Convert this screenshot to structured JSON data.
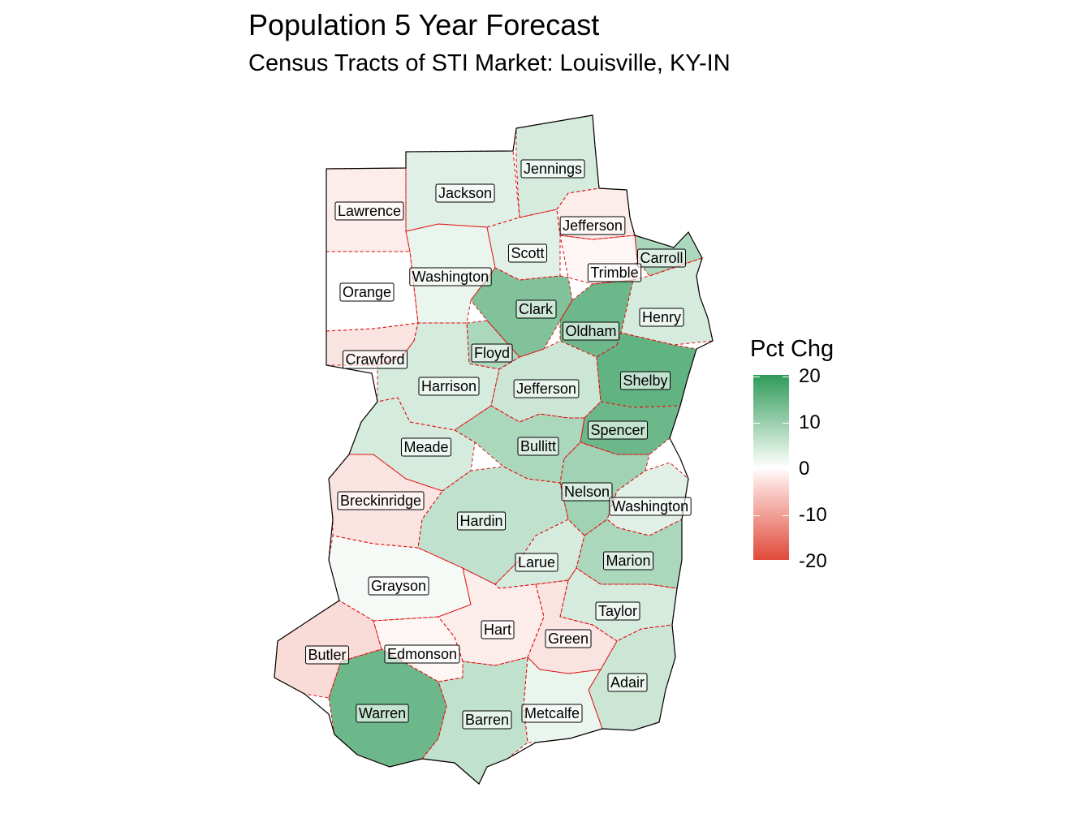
{
  "title": "Population 5 Year Forecast",
  "subtitle": "Census Tracts of STI Market: Louisville, KY-IN",
  "legend": {
    "title": "Pct Chg",
    "ticks": [
      "20",
      "10",
      "0",
      "-10",
      "-20"
    ],
    "scale": {
      "min": -20,
      "max": 20,
      "low_color": "#e04a3a",
      "mid_color": "#ffffff",
      "high_color": "#2e9a58"
    }
  },
  "counties": [
    {
      "name": "Jennings",
      "pct": 4
    },
    {
      "name": "Jackson",
      "pct": 3
    },
    {
      "name": "Lawrence",
      "pct": -2
    },
    {
      "name": "Jefferson",
      "pct": -2
    },
    {
      "name": "Scott",
      "pct": 3
    },
    {
      "name": "Carroll",
      "pct": 8
    },
    {
      "name": "Trimble",
      "pct": -1
    },
    {
      "name": "Washington",
      "pct": 2
    },
    {
      "name": "Orange",
      "pct": 0
    },
    {
      "name": "Henry",
      "pct": 4
    },
    {
      "name": "Clark",
      "pct": 12
    },
    {
      "name": "Oldham",
      "pct": 14
    },
    {
      "name": "Crawford",
      "pct": -3
    },
    {
      "name": "Floyd",
      "pct": 8
    },
    {
      "name": "Shelby",
      "pct": 15
    },
    {
      "name": "Harrison",
      "pct": 4
    },
    {
      "name": "Jefferson",
      "pct": 5
    },
    {
      "name": "Spencer",
      "pct": 14
    },
    {
      "name": "Meade",
      "pct": 4
    },
    {
      "name": "Bullitt",
      "pct": 8
    },
    {
      "name": "Nelson",
      "pct": 9
    },
    {
      "name": "Breckinridge",
      "pct": -3
    },
    {
      "name": "Washington",
      "pct": 3
    },
    {
      "name": "Hardin",
      "pct": 6
    },
    {
      "name": "Larue",
      "pct": 4
    },
    {
      "name": "Marion",
      "pct": 8
    },
    {
      "name": "Grayson",
      "pct": 1
    },
    {
      "name": "Taylor",
      "pct": 4
    },
    {
      "name": "Hart",
      "pct": -2
    },
    {
      "name": "Green",
      "pct": -3
    },
    {
      "name": "Butler",
      "pct": -4
    },
    {
      "name": "Edmonson",
      "pct": -1
    },
    {
      "name": "Adair",
      "pct": 5
    },
    {
      "name": "Warren",
      "pct": 14
    },
    {
      "name": "Barren",
      "pct": 6
    },
    {
      "name": "Metcalfe",
      "pct": 2
    }
  ]
}
